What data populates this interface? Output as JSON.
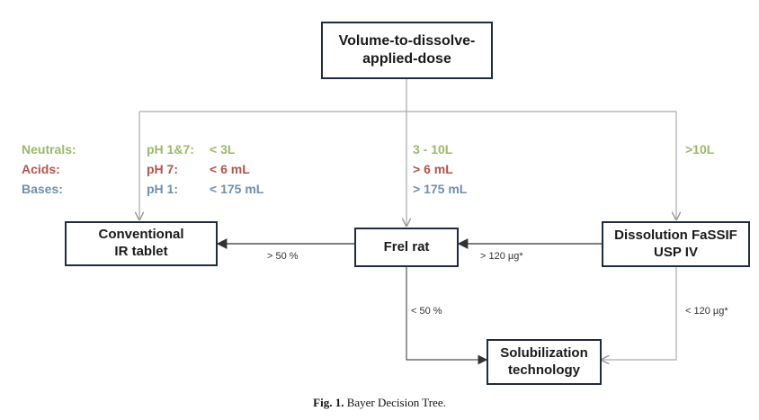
{
  "colors": {
    "neutrals": "#9bb86a",
    "acids": "#b5524d",
    "bases": "#6f8fb0",
    "box_border": "#1f2a44",
    "connector": "#aaaaaa",
    "arrow_dark": "#333333"
  },
  "boxes": {
    "volume": {
      "line1": "Volume-to-dissolve-",
      "line2": "applied-dose"
    },
    "conventional": {
      "line1": "Conventional",
      "line2": "IR tablet"
    },
    "frel": {
      "line1": "Frel rat"
    },
    "dissolution": {
      "line1": "Dissolution FaSSIF",
      "line2": "USP IV"
    },
    "solubilization": {
      "line1": "Solubilization",
      "line2": "technology"
    }
  },
  "legend": {
    "neutrals": "Neutrals:",
    "acids": "Acids:",
    "bases": "Bases:"
  },
  "branch_low": {
    "neutrals_ph": "pH 1&7:",
    "neutrals_val": "< 3L",
    "acids_ph": "pH 7:",
    "acids_val": "< 6 mL",
    "bases_ph": "pH 1:",
    "bases_val": "< 175 mL"
  },
  "branch_mid": {
    "neutrals": "3 - 10L",
    "acids": "> 6 mL",
    "bases": "> 175 mL"
  },
  "branch_high": {
    "neutrals": ">10L"
  },
  "edge_labels": {
    "frel_to_conventional": "> 50 %",
    "dissolution_to_frel": "> 120 µg*",
    "frel_to_solubilization": "< 50 %",
    "dissolution_to_solubilization": "< 120 µg*"
  },
  "caption": {
    "prefix": "Fig. 1.",
    "text": " Bayer Decision Tree."
  }
}
